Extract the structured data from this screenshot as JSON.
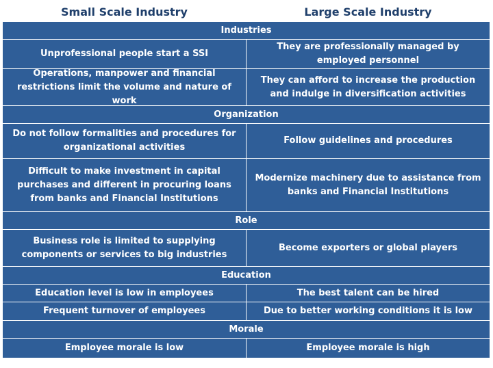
{
  "headers": {
    "left": "Small Scale Industry",
    "right": "Large Scale Industry"
  },
  "sections": [
    {
      "title": "Industries",
      "rows": [
        {
          "left": "Unprofessional people start a SSI",
          "right": "They are professionally managed by employed personnel"
        },
        {
          "left": "Operations, manpower and financial restrictions limit the volume and nature of work",
          "right": "They can afford to increase the production and indulge in diversification activities"
        }
      ]
    },
    {
      "title": "Organization",
      "rows": [
        {
          "left": "Do not follow formalities and procedures for organizational activities",
          "right": "Follow guidelines and procedures"
        },
        {
          "left": "Difficult to make investment in capital purchases and different in procuring loans from banks and Financial Institutions",
          "right": "Modernize machinery due to assistance from banks and Financial Institutions"
        }
      ]
    },
    {
      "title": "Role",
      "rows": [
        {
          "left": "Business role is limited to supplying components or services to big industries",
          "right": "Become exporters or global players"
        }
      ]
    },
    {
      "title": "Education",
      "rows": [
        {
          "left": "Education level is low in employees",
          "right": "The best talent can be hired"
        },
        {
          "left": "Frequent turnover of employees",
          "right": "Due to better working conditions it is low"
        }
      ]
    },
    {
      "title": "Morale",
      "rows": [
        {
          "left": "Employee morale is low",
          "right": "Employee morale is high"
        }
      ]
    }
  ],
  "colors": {
    "cell_bg": "#2f5e98",
    "header_text": "#1f3f6b",
    "cell_text": "#ffffff",
    "grid_lines": "#ffffff"
  }
}
